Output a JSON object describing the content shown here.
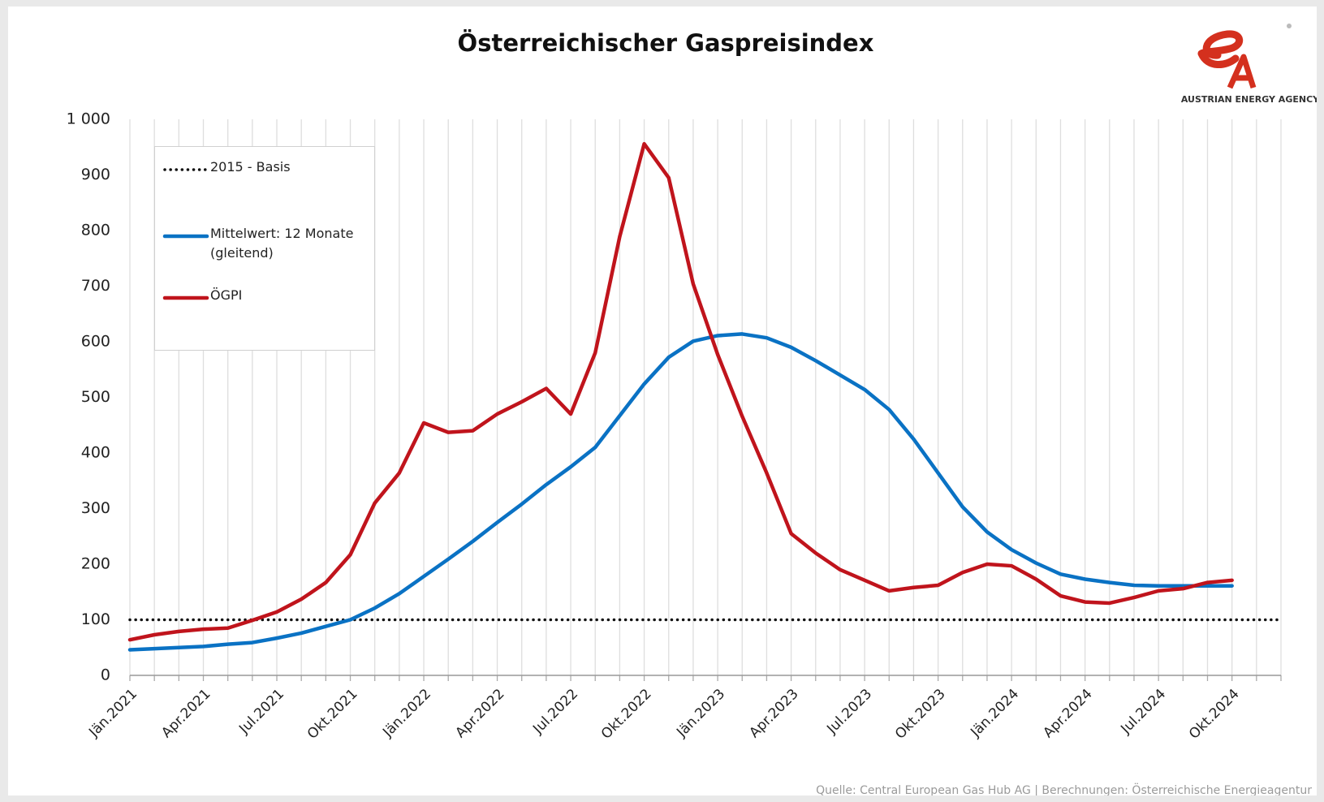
{
  "chart_data": {
    "type": "line",
    "title": "Österreichischer  Gaspreisindex",
    "source": "Quelle: Central European Gas Hub AG | Berechnungen: Österreichische Energieagentur",
    "logo_text": "AUSTRIAN ENERGY AGENCY",
    "categories": [
      "Jän.2021",
      null,
      null,
      "Apr.2021",
      null,
      null,
      "Jul.2021",
      null,
      null,
      "Okt.2021",
      null,
      null,
      "Jän.2022",
      null,
      null,
      "Apr.2022",
      null,
      null,
      "Jul.2022",
      null,
      null,
      "Okt.2022",
      null,
      null,
      "Jän.2023",
      null,
      null,
      "Apr.2023",
      null,
      null,
      "Jul.2023",
      null,
      null,
      "Okt.2023",
      null,
      null,
      "Jän.2024",
      null,
      null,
      "Apr.2024",
      null,
      null,
      "Jul.2024",
      null,
      null,
      "Okt.2024",
      null,
      null
    ],
    "series": [
      {
        "name": "2015 - Basis",
        "color": "#111111",
        "dash": "dotted",
        "values": [
          100,
          100,
          100,
          100,
          100,
          100,
          100,
          100,
          100,
          100,
          100,
          100,
          100,
          100,
          100,
          100,
          100,
          100,
          100,
          100,
          100,
          100,
          100,
          100,
          100,
          100,
          100,
          100,
          100,
          100,
          100,
          100,
          100,
          100,
          100,
          100,
          100,
          100,
          100,
          100,
          100,
          100,
          100,
          100,
          100,
          100,
          100,
          100
        ]
      },
      {
        "name": "Mittelwert: 12 Monate (gleitend)",
        "color": "#0a72c4",
        "values": [
          46,
          48,
          50,
          52,
          56,
          59,
          67,
          76,
          88,
          100,
          121,
          147,
          178,
          209,
          241,
          275,
          308,
          343,
          375,
          410,
          467,
          524,
          572,
          601,
          611,
          614,
          607,
          590,
          566,
          540,
          514,
          478,
          425,
          364,
          303,
          258,
          226,
          202,
          182,
          173,
          167,
          162,
          161,
          161,
          161,
          161,
          null,
          null
        ]
      },
      {
        "name": "ÖGPI",
        "color": "#c0141c",
        "values": [
          64,
          73,
          79,
          83,
          85,
          99,
          114,
          137,
          167,
          217,
          310,
          364,
          454,
          437,
          440,
          470,
          492,
          516,
          470,
          580,
          789,
          956,
          895,
          704,
          577,
          466,
          364,
          255,
          220,
          190,
          171,
          152,
          158,
          162,
          185,
          200,
          197,
          173,
          143,
          132,
          130,
          140,
          152,
          156,
          167,
          171,
          null,
          null
        ]
      }
    ],
    "ylim": [
      0,
      1000
    ],
    "yticks": [
      0,
      100,
      200,
      300,
      400,
      500,
      600,
      700,
      800,
      900,
      {
        "value": 1000,
        "label": "1 000"
      }
    ],
    "grid": "x",
    "legend": "upper-left"
  }
}
